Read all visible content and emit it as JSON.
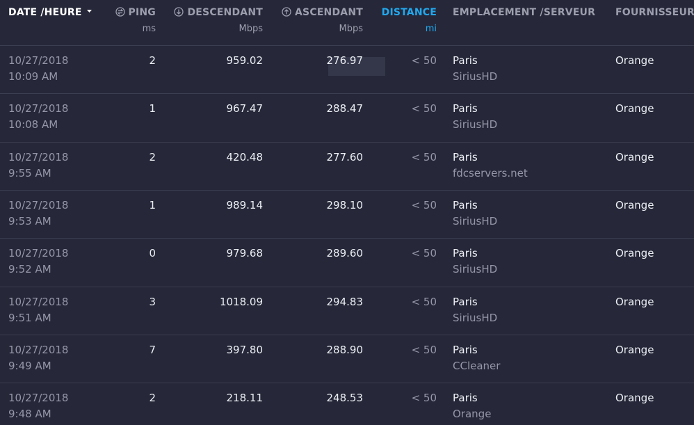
{
  "header": {
    "columns": [
      {
        "label": "DATE /HEURE"
      },
      {
        "label": "PING",
        "unit": "ms"
      },
      {
        "label": "DESCENDANT",
        "unit": "Mbps"
      },
      {
        "label": "ASCENDANT",
        "unit": "Mbps"
      },
      {
        "label": "DISTANCE",
        "unit": "mi"
      },
      {
        "label": "EMPLACEMENT /SERVEUR"
      },
      {
        "label": "FOURNISSEUR"
      }
    ]
  },
  "table": {
    "rows": [
      [
        "10/27/2018",
        "10:09 AM",
        "2",
        "959.02",
        "276.97",
        "< 50",
        "Paris",
        "SiriusHD",
        "Orange"
      ],
      [
        "10/27/2018",
        "10:08 AM",
        "1",
        "967.47",
        "288.47",
        "< 50",
        "Paris",
        "SiriusHD",
        "Orange"
      ],
      [
        "10/27/2018",
        "9:55 AM",
        "2",
        "420.48",
        "277.60",
        "< 50",
        "Paris",
        "fdcservers.net",
        "Orange"
      ],
      [
        "10/27/2018",
        "9:53 AM",
        "1",
        "989.14",
        "298.10",
        "< 50",
        "Paris",
        "SiriusHD",
        "Orange"
      ],
      [
        "10/27/2018",
        "9:52 AM",
        "0",
        "979.68",
        "289.60",
        "< 50",
        "Paris",
        "SiriusHD",
        "Orange"
      ],
      [
        "10/27/2018",
        "9:51 AM",
        "3",
        "1018.09",
        "294.83",
        "< 50",
        "Paris",
        "SiriusHD",
        "Orange"
      ],
      [
        "10/27/2018",
        "9:49 AM",
        "7",
        "397.80",
        "288.90",
        "< 50",
        "Paris",
        "CCleaner",
        "Orange"
      ],
      [
        "10/27/2018",
        "9:48 AM",
        "2",
        "218.11",
        "248.53",
        "< 50",
        "Paris",
        "Orange",
        "Orange"
      ]
    ]
  }
}
